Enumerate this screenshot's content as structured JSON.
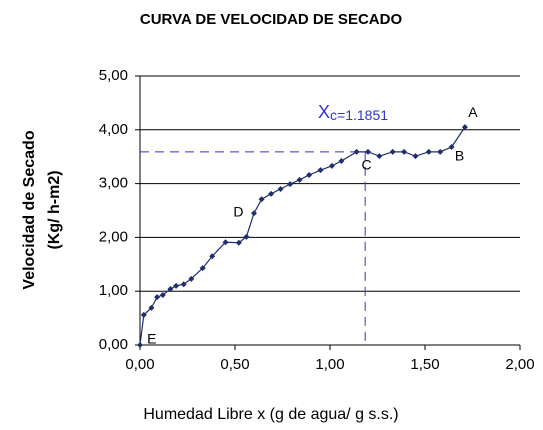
{
  "chart_data": {
    "type": "line",
    "title": "CURVA DE VELOCIDAD DE SECADO",
    "x_label": "Humedad Libre x (g de agua/ g s.s.)",
    "y_label": [
      "Velocidad de Secado",
      "(Kg/ h-m2)"
    ],
    "series": [
      {
        "color": "#1f2f6e",
        "x": [
          0,
          0.02,
          0.06,
          0.09,
          0.12,
          0.16,
          0.19,
          0.23,
          0.27,
          0.33,
          0.38,
          0.45,
          0.52,
          0.56,
          0.6,
          0.64,
          0.69,
          0.74,
          0.79,
          0.84,
          0.89,
          0.95,
          1.01,
          1.06,
          1.14,
          1.2,
          1.26,
          1.33,
          1.39,
          1.45,
          1.52,
          1.58,
          1.64,
          1.71
        ],
        "values": [
          0,
          0.56,
          0.69,
          0.89,
          0.93,
          1.04,
          1.1,
          1.13,
          1.23,
          1.43,
          1.65,
          1.91,
          1.9,
          2.01,
          2.45,
          2.71,
          2.81,
          2.9,
          2.99,
          3.07,
          3.16,
          3.25,
          3.33,
          3.42,
          3.59,
          3.59,
          3.51,
          3.59,
          3.59,
          3.51,
          3.59,
          3.59,
          3.68,
          4.05
        ]
      }
    ],
    "annotations": [
      "A",
      "B",
      "C",
      "D",
      "E"
    ],
    "critical": {
      "x": 1.1851,
      "y": 3.59,
      "label_main": "X",
      "label_sub": "c=1.1851",
      "color": "#3333cc"
    },
    "xlim": [
      0,
      2
    ],
    "xticks": [
      {
        "value": 0,
        "label": "0,00"
      },
      {
        "value": 0.5,
        "label": "0,50"
      },
      {
        "value": 1,
        "label": "1,00"
      },
      {
        "value": 1.5,
        "label": "1,50"
      },
      {
        "value": 2,
        "label": "2,00"
      }
    ],
    "ylim": [
      0,
      5
    ],
    "yticks": [
      {
        "value": 0,
        "label": "0,00"
      },
      {
        "value": 1,
        "label": "1,00"
      },
      {
        "value": 2,
        "label": "2,00"
      },
      {
        "value": 3,
        "label": "3,00"
      },
      {
        "value": 4,
        "label": "4,00"
      },
      {
        "value": 5,
        "label": "5,00"
      }
    ],
    "grid": true
  }
}
